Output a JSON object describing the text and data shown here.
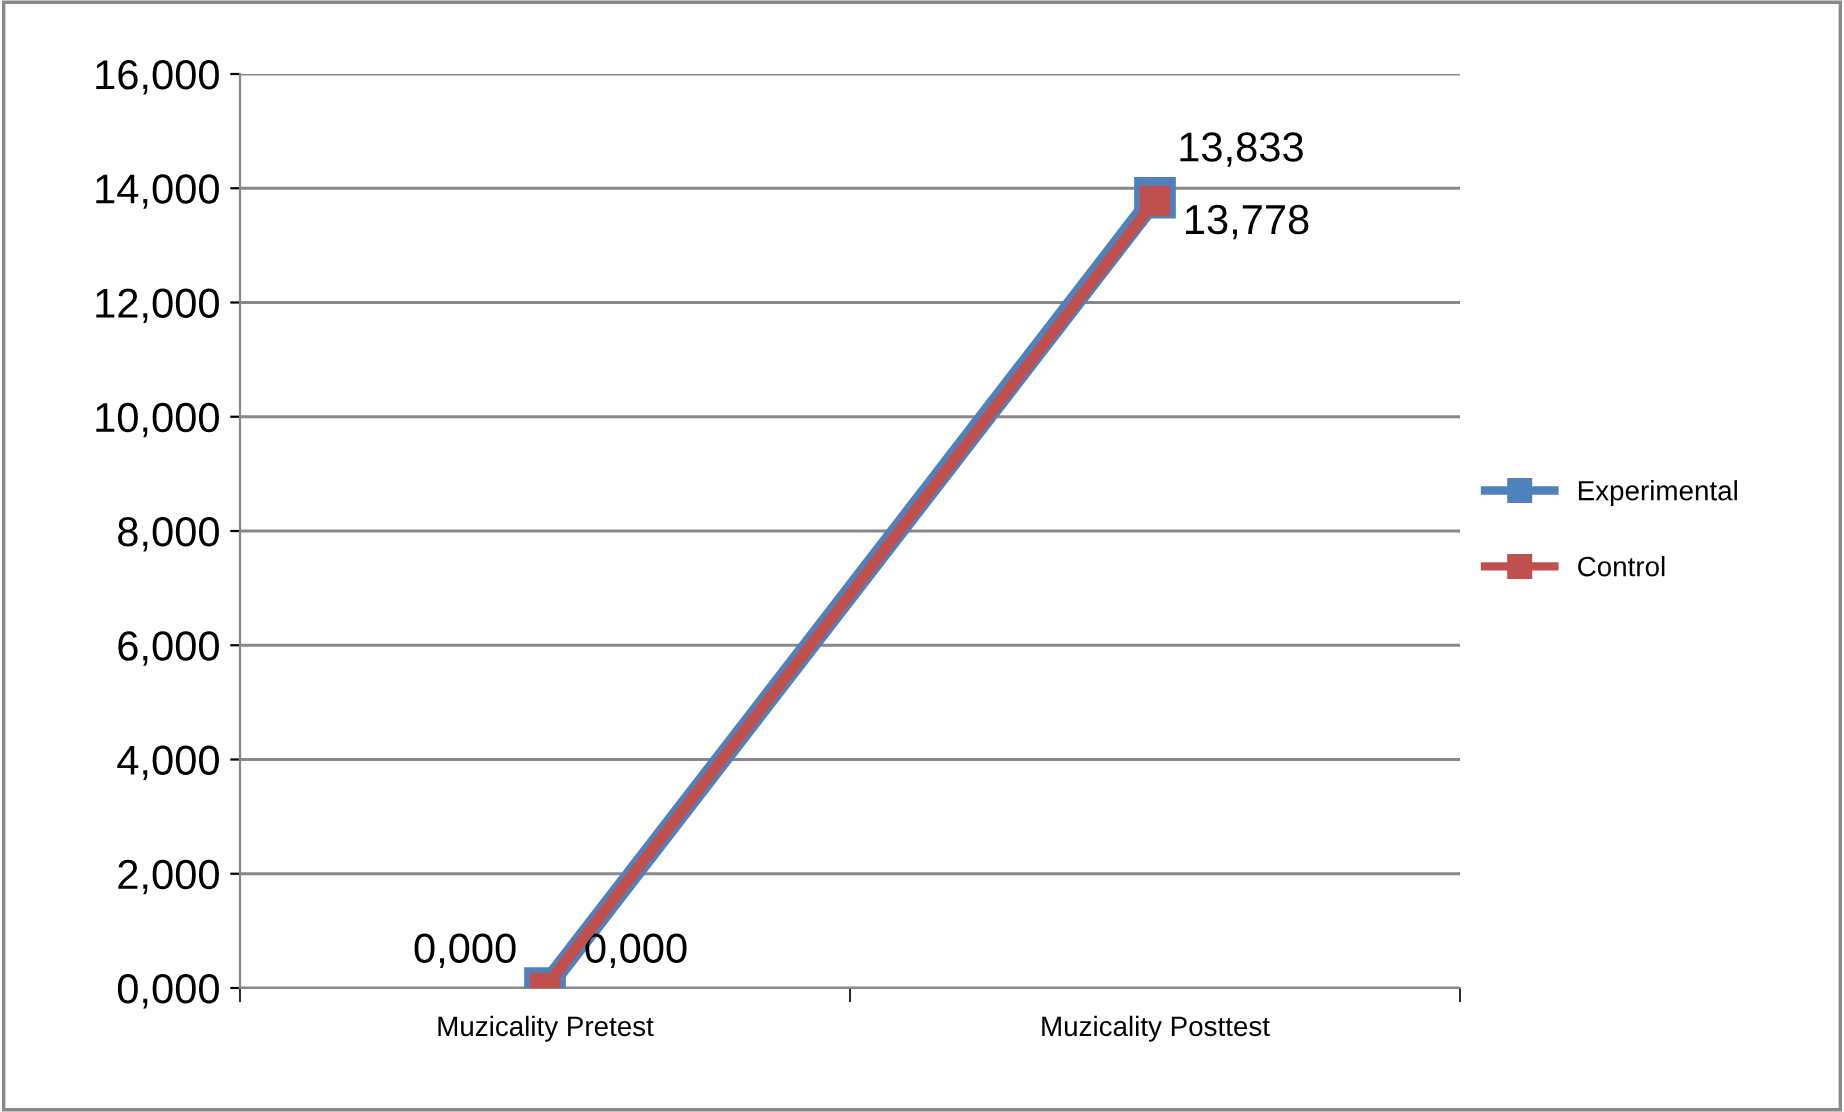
{
  "chart_data": {
    "type": "line",
    "categories": [
      "Muzicality Pretest",
      "Muzicality Posttest"
    ],
    "series": [
      {
        "name": "Experimental",
        "color": "#4f81bd",
        "values": [
          0.0,
          13.833
        ],
        "value_labels": [
          "0,000",
          "13,833"
        ]
      },
      {
        "name": "Control",
        "color": "#c0504d",
        "values": [
          0.0,
          13.778
        ],
        "value_labels": [
          "0,000",
          "13,778"
        ]
      }
    ],
    "ylim": [
      0,
      16
    ],
    "yticks": [
      {
        "value": 0,
        "label": "0,000"
      },
      {
        "value": 2,
        "label": "2,000"
      },
      {
        "value": 4,
        "label": "4,000"
      },
      {
        "value": 6,
        "label": "6,000"
      },
      {
        "value": 8,
        "label": "8,000"
      },
      {
        "value": 10,
        "label": "10,000"
      },
      {
        "value": 12,
        "label": "12,000"
      },
      {
        "value": 14,
        "label": "14,000"
      },
      {
        "value": 16,
        "label": "16,000"
      }
    ],
    "grid": "y",
    "legend": "right",
    "marker": "square",
    "line_style": "solid"
  }
}
